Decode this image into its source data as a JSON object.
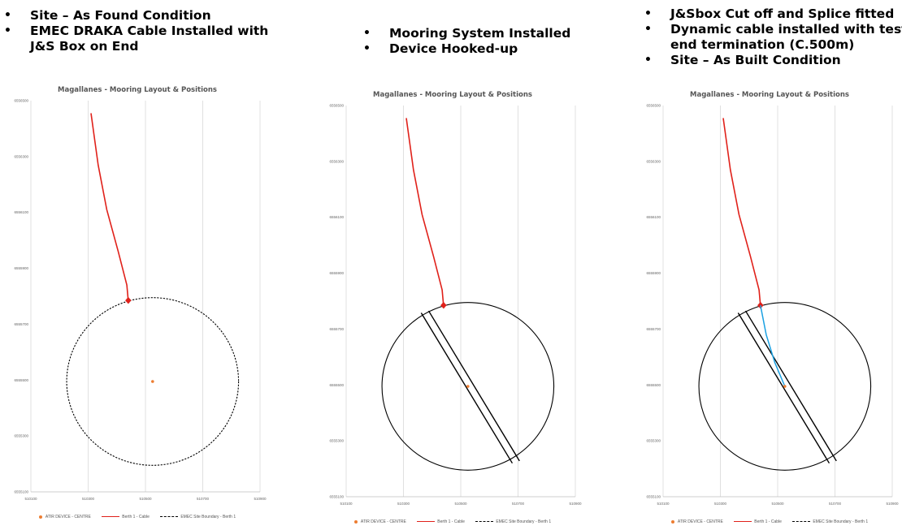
{
  "bullets": [
    [
      "Site – As Found Condition",
      "EMEC DRAKA Cable Installed with",
      "J&S Box on End"
    ],
    [
      "Mooring System Installed",
      "Device Hooked-up"
    ],
    [
      "J&Sbox Cut off and Splice fitted",
      "Dynamic cable installed with test",
      "end termination (C.500m)",
      "Site – As Built Condition"
    ]
  ],
  "colors": {
    "cable": "#E0211A",
    "centre": "#ED7D31",
    "boundary": "#000000",
    "mooring": "#000000",
    "dynamic_cable": "#1BA1E2",
    "grid": "#D9D9D9"
  },
  "chart_data": [
    {
      "type": "scatter",
      "title": "Magallanes - Mooring Layout & Positions",
      "x_ticks": [
        "510100",
        "510300",
        "510500",
        "510700",
        "510900"
      ],
      "y_ticks": [
        "6556500",
        "6556300",
        "6556100",
        "6555900",
        "6555700",
        "6555500",
        "6555300",
        "6555100"
      ],
      "xlim": [
        510100,
        510900
      ],
      "ylim": [
        6555100,
        6556500
      ],
      "legend": [
        "ATIR DEVICE - CENTRE",
        "Berth 1 - Cable",
        "EMEC Site Boundary - Berth 1"
      ],
      "legend_position": "bottom",
      "series": [
        {
          "name": "Berth 1 - Cable",
          "points": [
            [
              510310,
              6556455
            ],
            [
              510335,
              6556270
            ],
            [
              510365,
              6556110
            ],
            [
              510405,
              6555960
            ],
            [
              510435,
              6555840
            ],
            [
              510440,
              6555785
            ]
          ],
          "marker_end": "diamond"
        },
        {
          "name": "ATIR DEVICE - CENTRE",
          "points": [
            [
              510525,
              6555495
            ]
          ]
        },
        {
          "name": "EMEC Site Boundary - Berth 1",
          "center": [
            510525,
            6555495
          ],
          "radius": 300
        }
      ],
      "mooring_lines": [],
      "dynamic_cable": []
    },
    {
      "type": "scatter",
      "title": "Magallanes - Mooring Layout & Positions",
      "x_ticks": [
        "510100",
        "510300",
        "510500",
        "510700",
        "510900"
      ],
      "y_ticks": [
        "6556500",
        "6556300",
        "6556100",
        "6555900",
        "6555700",
        "6555500",
        "6555300",
        "6555100"
      ],
      "xlim": [
        510100,
        510900
      ],
      "ylim": [
        6555100,
        6556500
      ],
      "legend": [
        "ATIR DEVICE - CENTRE",
        "Berth 1 - Cable",
        "EMEC Site Boundary - Berth 1"
      ],
      "legend_position": "bottom",
      "series": [
        {
          "name": "Berth 1 - Cable",
          "points": [
            [
              510310,
              6556455
            ],
            [
              510335,
              6556270
            ],
            [
              510365,
              6556110
            ],
            [
              510405,
              6555960
            ],
            [
              510435,
              6555840
            ],
            [
              510440,
              6555785
            ]
          ],
          "marker_end": "diamond"
        },
        {
          "name": "ATIR DEVICE - CENTRE",
          "points": [
            [
              510525,
              6555495
            ]
          ]
        },
        {
          "name": "EMEC Site Boundary - Berth 1",
          "center": [
            510525,
            6555495
          ],
          "radius": 300
        }
      ],
      "mooring_lines": [
        [
          [
            510362,
            6555758
          ],
          [
            510680,
            6555220
          ]
        ],
        [
          [
            510388,
            6555765
          ],
          [
            510705,
            6555228
          ]
        ]
      ],
      "dynamic_cable": []
    },
    {
      "type": "scatter",
      "title": "Magallanes - Mooring Layout & Positions",
      "x_ticks": [
        "510100",
        "510300",
        "510500",
        "510700",
        "510900"
      ],
      "y_ticks": [
        "6556500",
        "6556300",
        "6556100",
        "6555900",
        "6555700",
        "6555500",
        "6555300",
        "6555100"
      ],
      "xlim": [
        510100,
        510900
      ],
      "ylim": [
        6555100,
        6556500
      ],
      "legend": [
        "ATIR DEVICE - CENTRE",
        "Berth 1 - Cable",
        "EMEC Site Boundary - Berth 1"
      ],
      "legend_position": "bottom",
      "series": [
        {
          "name": "Berth 1 - Cable",
          "points": [
            [
              510310,
              6556455
            ],
            [
              510335,
              6556270
            ],
            [
              510365,
              6556110
            ],
            [
              510405,
              6555960
            ],
            [
              510435,
              6555840
            ],
            [
              510440,
              6555785
            ]
          ],
          "marker_end": "diamond"
        },
        {
          "name": "ATIR DEVICE - CENTRE",
          "points": [
            [
              510525,
              6555495
            ]
          ]
        },
        {
          "name": "EMEC Site Boundary - Berth 1",
          "center": [
            510525,
            6555495
          ],
          "radius": 300
        }
      ],
      "mooring_lines": [
        [
          [
            510362,
            6555758
          ],
          [
            510680,
            6555220
          ]
        ],
        [
          [
            510388,
            6555765
          ],
          [
            510705,
            6555228
          ]
        ]
      ],
      "dynamic_cable": [
        [
          510440,
          6555785
        ],
        [
          510460,
          6555680
        ],
        [
          510490,
          6555580
        ],
        [
          510525,
          6555495
        ]
      ]
    }
  ]
}
